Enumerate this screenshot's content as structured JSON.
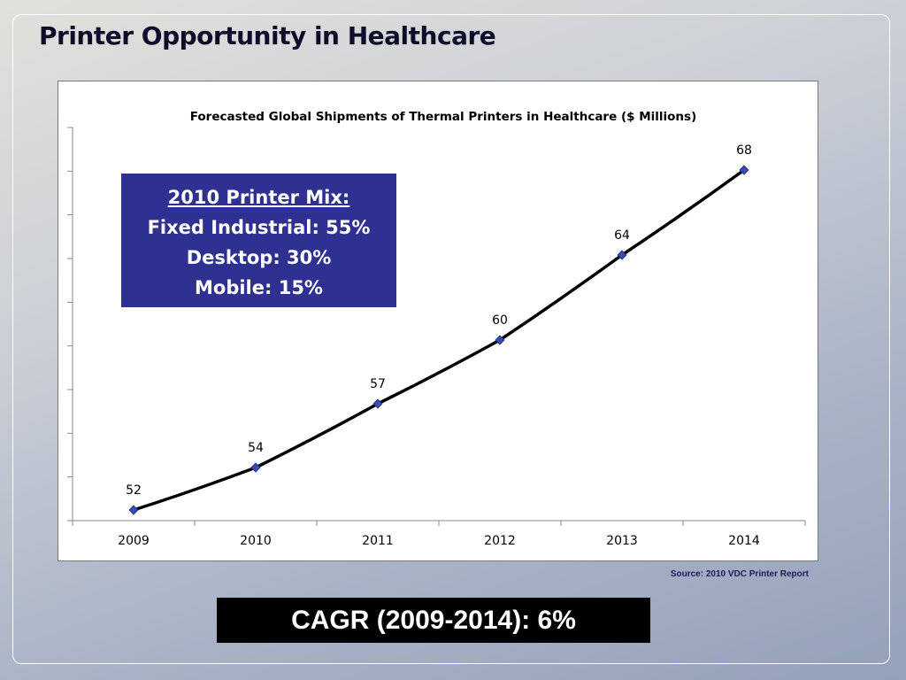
{
  "slide": {
    "title": "Printer Opportunity in Healthcare",
    "source": "Source: 2010 VDC Printer Report",
    "cagr": "CAGR (2009-2014): 6%"
  },
  "mix_box": {
    "title": "2010 Printer Mix:",
    "lines": [
      "Fixed Industrial: 55%",
      "Desktop: 30%",
      "Mobile: 15%"
    ]
  },
  "chart_data": {
    "type": "line",
    "title": "Forecasted Global Shipments of Thermal Printers in Healthcare ($ Millions)",
    "xlabel": "",
    "ylabel": "",
    "categories": [
      "2009",
      "2010",
      "2011",
      "2012",
      "2013",
      "2014"
    ],
    "series": [
      {
        "values": [
          52,
          54,
          57,
          60,
          64,
          68
        ]
      }
    ],
    "data_labels": [
      "52",
      "54",
      "57",
      "60",
      "64",
      "68"
    ],
    "ylim": [
      51.5,
      70
    ],
    "grid": false,
    "y_tick_labels_visible": false,
    "colors": {
      "line": "#000000",
      "marker": "#3a4bb0",
      "marker_edge": "#1f2a80"
    }
  }
}
